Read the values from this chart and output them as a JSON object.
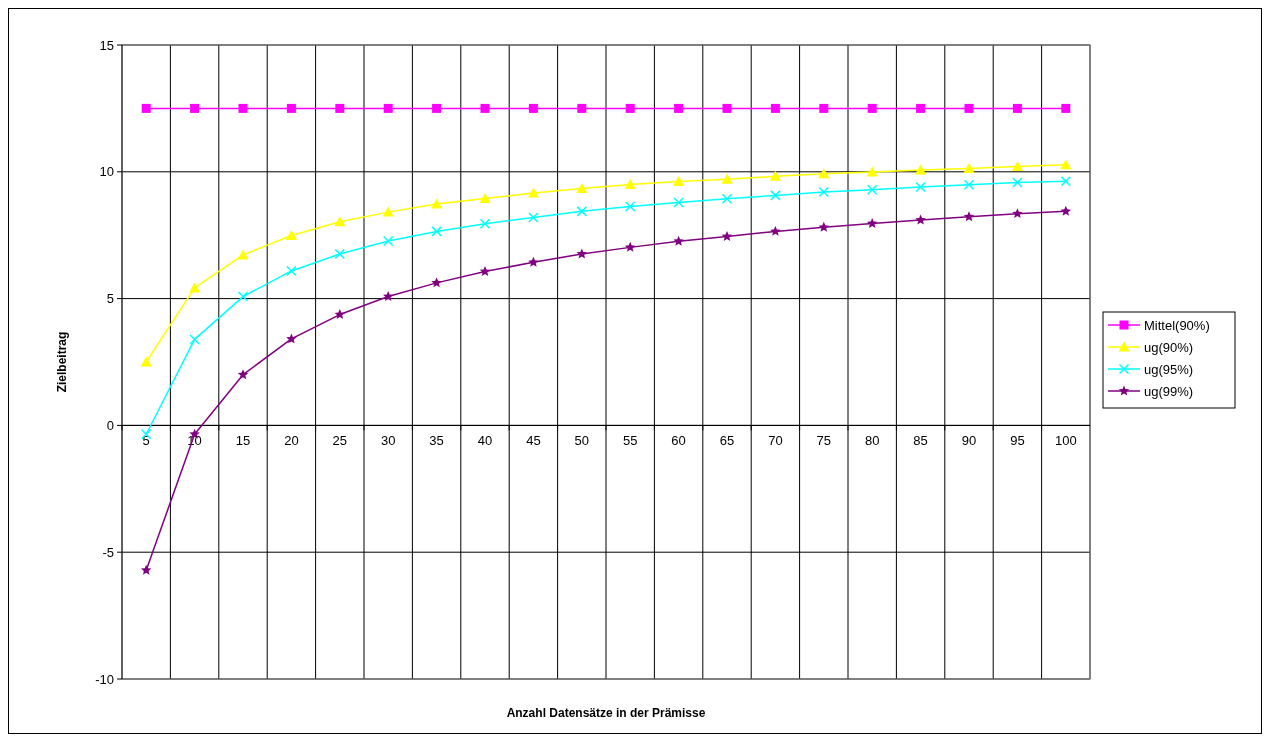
{
  "chart_data": {
    "type": "line",
    "xlabel": "Anzahl Datensätze in der Prämisse",
    "ylabel": "Zielbeitrag",
    "categories": [
      "5",
      "10",
      "15",
      "20",
      "25",
      "30",
      "35",
      "40",
      "45",
      "50",
      "55",
      "60",
      "65",
      "70",
      "75",
      "80",
      "85",
      "90",
      "95",
      "100"
    ],
    "ylim": [
      -10,
      15
    ],
    "yticks": [
      -10,
      -5,
      0,
      5,
      10,
      15
    ],
    "grid": true,
    "legend": "right",
    "series": [
      {
        "name": "Mittel(90%)",
        "color": "#ff00ff",
        "marker": "square",
        "values": [
          12.5,
          12.5,
          12.5,
          12.5,
          12.5,
          12.5,
          12.5,
          12.5,
          12.5,
          12.5,
          12.5,
          12.5,
          12.5,
          12.5,
          12.5,
          12.5,
          12.5,
          12.5,
          12.5,
          12.5
        ]
      },
      {
        "name": "ug(90%)",
        "color": "#ffff00",
        "marker": "triangle",
        "values": [
          2.5,
          5.42,
          6.72,
          7.49,
          8.03,
          8.41,
          8.73,
          8.95,
          9.16,
          9.34,
          9.5,
          9.62,
          9.71,
          9.82,
          9.92,
          9.99,
          10.07,
          10.13,
          10.21,
          10.28
        ]
      },
      {
        "name": "ug(95%)",
        "color": "#00ffff",
        "marker": "cross",
        "values": [
          -0.35,
          3.39,
          5.08,
          6.09,
          6.76,
          7.27,
          7.65,
          7.95,
          8.2,
          8.44,
          8.63,
          8.79,
          8.94,
          9.07,
          9.2,
          9.29,
          9.4,
          9.49,
          9.58,
          9.63
        ]
      },
      {
        "name": "ug(99%)",
        "color": "#800080",
        "marker": "star",
        "values": [
          -5.71,
          -0.35,
          2.0,
          3.41,
          4.37,
          5.08,
          5.62,
          6.07,
          6.43,
          6.76,
          7.02,
          7.26,
          7.45,
          7.65,
          7.81,
          7.96,
          8.1,
          8.23,
          8.35,
          8.44
        ]
      }
    ]
  }
}
